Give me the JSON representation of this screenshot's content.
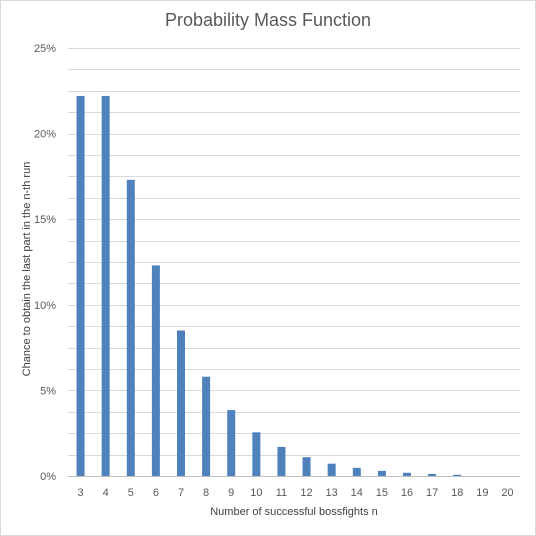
{
  "chart_data": {
    "type": "bar",
    "title": "Probability Mass Function",
    "xlabel": "Number  of successful bossfights n",
    "ylabel": "Chance to obtain the last part in the n-th run",
    "categories": [
      "3",
      "4",
      "5",
      "6",
      "7",
      "8",
      "9",
      "10",
      "11",
      "12",
      "13",
      "14",
      "15",
      "16",
      "17",
      "18",
      "19",
      "20"
    ],
    "values": [
      22.2,
      22.2,
      17.3,
      12.3,
      8.5,
      5.8,
      3.85,
      2.55,
      1.7,
      1.1,
      0.72,
      0.48,
      0.3,
      0.19,
      0.12,
      0.07,
      0.0,
      0.0
    ],
    "ylim": [
      0,
      25
    ],
    "yticks": [
      0,
      5,
      10,
      15,
      20,
      25
    ],
    "ytick_labels": [
      "0%",
      "5%",
      "10%",
      "15%",
      "20%",
      "25%"
    ],
    "grid": true,
    "minor_grid_step": 1.25,
    "bar_color": "#4f81bd",
    "grid_color": "#d9d9d9"
  }
}
